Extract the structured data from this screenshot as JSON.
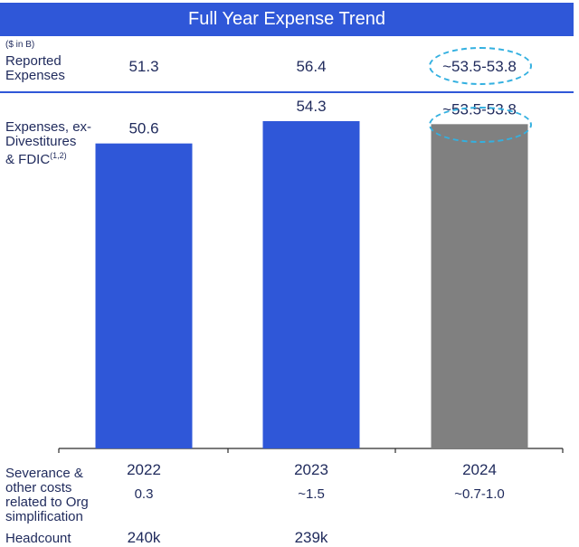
{
  "title": "Full Year Expense Trend",
  "unit_note": "($ in B)",
  "reported": {
    "label_line1": "Reported",
    "label_line2": "Expenses",
    "values": [
      "51.3",
      "56.4",
      "~53.5-53.8"
    ]
  },
  "expenses_label": {
    "line1": "Expenses, ex-",
    "line2": "Divestitures",
    "line3": "& FDIC",
    "footnote": "(1,2)"
  },
  "chart_data": {
    "type": "bar",
    "categories": [
      "2022",
      "2023",
      "2024"
    ],
    "values": [
      50.6,
      54.3,
      53.8
    ],
    "data_labels": [
      "50.6",
      "54.3",
      "~53.5-53.8"
    ],
    "colors": [
      "#2f57d8",
      "#2f57d8",
      "#808080"
    ],
    "ylim": [
      0,
      60
    ]
  },
  "severance": {
    "label_lines": [
      "Severance &",
      "other costs",
      "related to Org",
      "simplification"
    ],
    "values": [
      "0.3",
      "~1.5",
      "~0.7-1.0"
    ]
  },
  "headcount": {
    "label": "Headcount",
    "values": [
      "240k",
      "239k"
    ]
  },
  "colors": {
    "accent_blue": "#2f57d8",
    "projection_gray": "#808080",
    "highlight_dashed": "#33b0e0"
  }
}
